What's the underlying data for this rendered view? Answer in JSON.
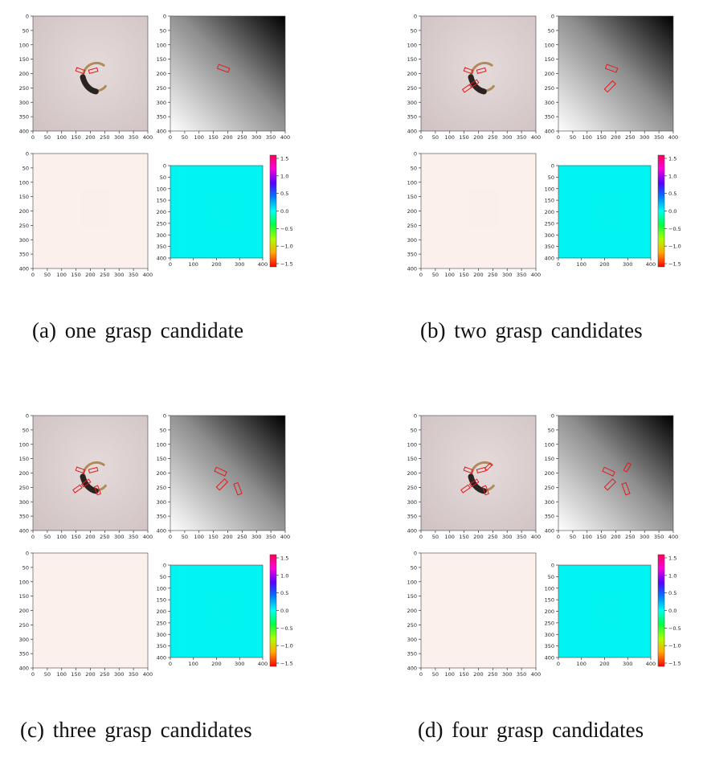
{
  "panels": [
    {
      "label": "(a)",
      "caption": "one grasp candidate",
      "rgb_rects": [
        [
          165,
          190,
          30,
          12,
          20
        ],
        [
          210,
          190,
          30,
          12,
          -15
        ]
      ],
      "depth_rects": [
        [
          185,
          182,
          40,
          15,
          20
        ]
      ],
      "heat_scale": 1.0
    },
    {
      "label": "(b)",
      "caption": "two grasp candidates",
      "rgb_rects": [
        [
          165,
          190,
          30,
          12,
          20
        ],
        [
          210,
          190,
          30,
          12,
          -15
        ],
        [
          185,
          235,
          30,
          12,
          -35
        ],
        [
          160,
          252,
          30,
          12,
          -35
        ]
      ],
      "depth_rects": [
        [
          185,
          182,
          40,
          15,
          20
        ],
        [
          180,
          245,
          40,
          15,
          -45
        ]
      ],
      "heat_scale": 1.0
    },
    {
      "label": "(c)",
      "caption": "three grasp candidates",
      "rgb_rects": [
        [
          165,
          190,
          30,
          12,
          20
        ],
        [
          210,
          190,
          30,
          12,
          -15
        ],
        [
          185,
          235,
          30,
          12,
          -35
        ],
        [
          155,
          255,
          30,
          12,
          -35
        ],
        [
          225,
          260,
          30,
          12,
          70
        ]
      ],
      "depth_rects": [
        [
          175,
          195,
          40,
          15,
          25
        ],
        [
          180,
          240,
          40,
          15,
          -45
        ],
        [
          235,
          255,
          40,
          15,
          70
        ]
      ],
      "heat_scale": 0.85
    },
    {
      "label": "(d)",
      "caption": "four grasp candidates",
      "rgb_rects": [
        [
          165,
          190,
          30,
          12,
          20
        ],
        [
          210,
          190,
          30,
          12,
          -15
        ],
        [
          235,
          178,
          26,
          10,
          -45
        ],
        [
          185,
          235,
          30,
          12,
          -35
        ],
        [
          155,
          255,
          30,
          12,
          -35
        ],
        [
          225,
          260,
          30,
          12,
          70
        ]
      ],
      "depth_rects": [
        [
          175,
          195,
          40,
          15,
          25
        ],
        [
          240,
          180,
          30,
          12,
          -60
        ],
        [
          180,
          240,
          40,
          15,
          -45
        ],
        [
          235,
          255,
          40,
          15,
          70
        ]
      ],
      "heat_scale": 0.85
    }
  ],
  "axes": {
    "ticks_xy": [
      "0",
      "50",
      "100",
      "150",
      "200",
      "250",
      "300",
      "350",
      "400"
    ],
    "ticks_ang_x": [
      "0",
      "100",
      "200",
      "300",
      "400"
    ]
  },
  "colorbar": {
    "ticks": [
      "1.5",
      "1.0",
      "0.5",
      "0.0",
      "−0.5",
      "−1.0",
      "−1.5"
    ]
  },
  "colors": {
    "grasp_rect": "#e41a1c",
    "heat_bg": "#fcf0ec",
    "heat_fg": "#c8180f",
    "ang_bg": "#00f5f2"
  }
}
